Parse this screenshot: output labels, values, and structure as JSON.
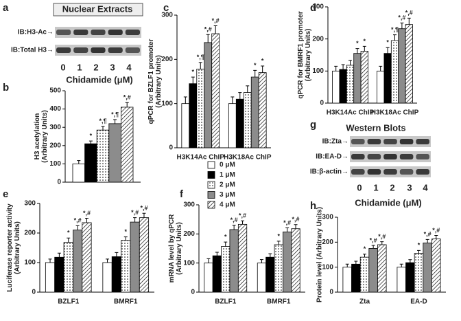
{
  "panel_labels": {
    "a": "a",
    "b": "b",
    "c": "c",
    "d": "d",
    "e": "e",
    "f": "f",
    "g": "g",
    "h": "h"
  },
  "blots": [
    {
      "title": "Nuclear Extracts",
      "rows": [
        "IB:H3-Ac→",
        "IB:Total H3→"
      ],
      "lanes": [
        0,
        1,
        2,
        3,
        4
      ],
      "xlabel": "Chidamide (μM)"
    },
    {
      "title": "Western Blots",
      "rows": [
        "IB:Zta→",
        "IB:EA-D→",
        "IB:β-actin→"
      ],
      "lanes": [
        0,
        1,
        2,
        3,
        4
      ],
      "xlabel": "Chidamide (μM)"
    }
  ],
  "chart_data": [
    {
      "type": "bar",
      "ylabel": [
        "H3 acetylation",
        "(Arbitrary Units)"
      ],
      "ylim": [
        0,
        500
      ],
      "yticks": [
        0,
        100,
        200,
        300,
        400,
        500
      ],
      "categories": [
        null
      ],
      "series": [
        {
          "color": "#ffffff",
          "pattern": "solid",
          "values": [
            100
          ],
          "errors": [
            18
          ],
          "markers": [
            null
          ]
        },
        {
          "color": "#000000",
          "pattern": "solid",
          "values": [
            210
          ],
          "errors": [
            15
          ],
          "markers": [
            "*"
          ]
        },
        {
          "color": "#ffffff",
          "pattern": "dots",
          "values": [
            285
          ],
          "errors": [
            20
          ],
          "markers": [
            "*,¶"
          ]
        },
        {
          "color": "#8c8c8c",
          "pattern": "solid",
          "values": [
            320
          ],
          "errors": [
            22
          ],
          "markers": [
            "*,¶"
          ]
        },
        {
          "color": "#ffffff",
          "pattern": "hatch",
          "values": [
            410
          ],
          "errors": [
            25
          ],
          "markers": [
            "*,#"
          ]
        }
      ]
    },
    {
      "type": "bar",
      "ylabel": [
        "qPCR for BZLF1 promoter",
        "(Arbitrary Units)"
      ],
      "ylim": [
        0,
        300
      ],
      "yticks": [
        0,
        100,
        200,
        300
      ],
      "categories": [
        "H3K14Ac ChIP",
        "H3K18Ac ChIP"
      ],
      "series": [
        {
          "name": "0 μM",
          "color": "#ffffff",
          "pattern": "solid",
          "values": [
            100,
            100
          ],
          "errors": [
            15,
            15
          ],
          "markers": [
            null,
            null
          ]
        },
        {
          "name": "1 μM",
          "color": "#000000",
          "pattern": "solid",
          "values": [
            145,
            110
          ],
          "errors": [
            15,
            15
          ],
          "markers": [
            "*",
            null
          ]
        },
        {
          "name": "2 μM",
          "color": "#ffffff",
          "pattern": "dots",
          "values": [
            178,
            125
          ],
          "errors": [
            15,
            15
          ],
          "markers": [
            "*,¶",
            null
          ]
        },
        {
          "name": "3 μM",
          "color": "#8c8c8c",
          "pattern": "solid",
          "values": [
            238,
            160
          ],
          "errors": [
            18,
            15
          ],
          "markers": [
            "*,#",
            "*"
          ]
        },
        {
          "name": "4 μM",
          "color": "#ffffff",
          "pattern": "hatch",
          "values": [
            258,
            170
          ],
          "errors": [
            18,
            15
          ],
          "markers": [
            "*,#",
            "*"
          ]
        }
      ]
    },
    {
      "type": "bar",
      "ylabel": [
        "qPCR for BMRF1 promoter",
        "(Arbitrary Units)"
      ],
      "ylim": [
        0,
        300
      ],
      "yticks": [
        0,
        100,
        200,
        300
      ],
      "categories": [
        "H3K14Ac ChIP",
        "H3K18Ac ChIP"
      ],
      "series": [
        {
          "color": "#ffffff",
          "pattern": "solid",
          "values": [
            100,
            100
          ],
          "errors": [
            15,
            15
          ],
          "markers": [
            null,
            null
          ]
        },
        {
          "color": "#000000",
          "pattern": "solid",
          "values": [
            105,
            155
          ],
          "errors": [
            15,
            18
          ],
          "markers": [
            null,
            "*"
          ]
        },
        {
          "color": "#ffffff",
          "pattern": "dots",
          "values": [
            118,
            195
          ],
          "errors": [
            15,
            18
          ],
          "markers": [
            null,
            "*,¶"
          ]
        },
        {
          "color": "#8c8c8c",
          "pattern": "solid",
          "values": [
            155,
            232
          ],
          "errors": [
            15,
            18
          ],
          "markers": [
            "*",
            "*,#"
          ]
        },
        {
          "color": "#ffffff",
          "pattern": "hatch",
          "values": [
            162,
            245
          ],
          "errors": [
            15,
            20
          ],
          "markers": [
            "*",
            "*,#"
          ]
        }
      ]
    },
    {
      "type": "bar",
      "ylabel": [
        "Luciferase reporter activity",
        "(Arbitrary Units)"
      ],
      "ylim": [
        0,
        300
      ],
      "yticks": [
        0,
        100,
        200,
        300
      ],
      "categories": [
        "BZLF1",
        "BMRF1"
      ],
      "series": [
        {
          "color": "#ffffff",
          "pattern": "solid",
          "values": [
            100,
            100
          ],
          "errors": [
            12,
            12
          ],
          "markers": [
            null,
            null
          ]
        },
        {
          "color": "#000000",
          "pattern": "solid",
          "values": [
            118,
            120
          ],
          "errors": [
            14,
            14
          ],
          "markers": [
            null,
            null
          ]
        },
        {
          "color": "#ffffff",
          "pattern": "dots",
          "values": [
            168,
            175
          ],
          "errors": [
            15,
            12
          ],
          "markers": [
            "*",
            "*"
          ]
        },
        {
          "color": "#8c8c8c",
          "pattern": "solid",
          "values": [
            210,
            237
          ],
          "errors": [
            15,
            15
          ],
          "markers": [
            "*,#",
            "*,#"
          ]
        },
        {
          "color": "#ffffff",
          "pattern": "hatch",
          "values": [
            235,
            252
          ],
          "errors": [
            15,
            15
          ],
          "markers": [
            "*,#",
            "*,#"
          ]
        }
      ]
    },
    {
      "type": "bar",
      "ylabel": [
        "mRNA level by qPCR",
        "(Arbitrary Units)"
      ],
      "ylim": [
        0,
        300
      ],
      "yticks": [
        0,
        100,
        200,
        300
      ],
      "categories": [
        "BZLF1",
        "BMRF1"
      ],
      "series": [
        {
          "color": "#ffffff",
          "pattern": "solid",
          "values": [
            100,
            100
          ],
          "errors": [
            15,
            12
          ],
          "markers": [
            null,
            null
          ]
        },
        {
          "color": "#000000",
          "pattern": "solid",
          "values": [
            125,
            120
          ],
          "errors": [
            12,
            12
          ],
          "markers": [
            null,
            null
          ]
        },
        {
          "color": "#ffffff",
          "pattern": "dots",
          "values": [
            157,
            163
          ],
          "errors": [
            15,
            12
          ],
          "markers": [
            "*",
            "*"
          ]
        },
        {
          "color": "#8c8c8c",
          "pattern": "solid",
          "values": [
            215,
            207
          ],
          "errors": [
            15,
            14
          ],
          "markers": [
            "*,#",
            "*,#"
          ]
        },
        {
          "color": "#ffffff",
          "pattern": "hatch",
          "values": [
            233,
            218
          ],
          "errors": [
            12,
            14
          ],
          "markers": [
            "*,#",
            "*,#"
          ]
        }
      ]
    },
    {
      "type": "bar",
      "ylabel": [
        "Protein level (Arbitrary Units)"
      ],
      "ylim": [
        0,
        300
      ],
      "yticks": [
        0,
        100,
        200,
        300
      ],
      "categories": [
        "Zta",
        "EA-D"
      ],
      "series": [
        {
          "color": "#ffffff",
          "pattern": "solid",
          "values": [
            100,
            100
          ],
          "errors": [
            12,
            12
          ],
          "markers": [
            null,
            null
          ]
        },
        {
          "color": "#000000",
          "pattern": "solid",
          "values": [
            112,
            118
          ],
          "errors": [
            12,
            12
          ],
          "markers": [
            null,
            null
          ]
        },
        {
          "color": "#ffffff",
          "pattern": "dots",
          "values": [
            140,
            155
          ],
          "errors": [
            12,
            12
          ],
          "markers": [
            "*",
            "*"
          ]
        },
        {
          "color": "#8c8c8c",
          "pattern": "solid",
          "values": [
            175,
            197
          ],
          "errors": [
            12,
            14
          ],
          "markers": [
            "*,#",
            "*,#"
          ]
        },
        {
          "color": "#ffffff",
          "pattern": "hatch",
          "values": [
            190,
            213
          ],
          "errors": [
            12,
            14
          ],
          "markers": [
            "*,#",
            "*,#"
          ]
        }
      ]
    }
  ]
}
